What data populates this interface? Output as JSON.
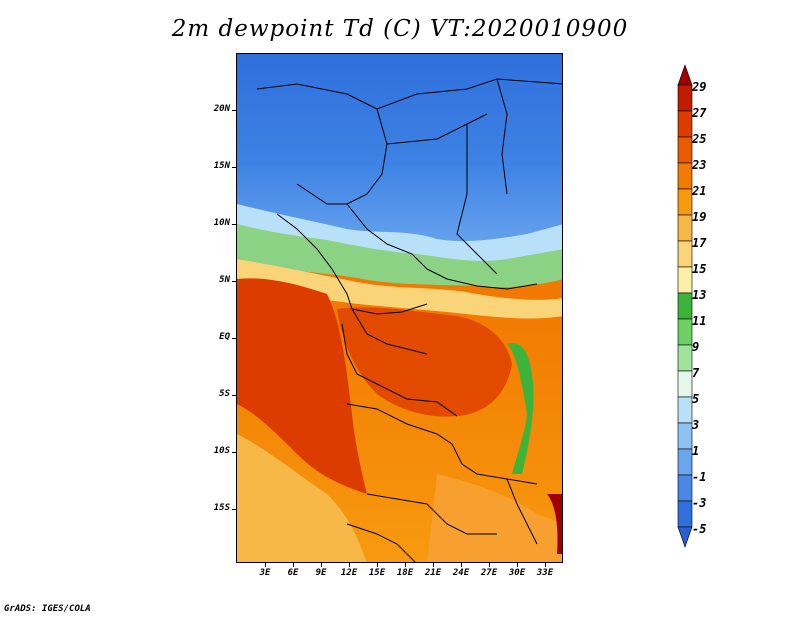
{
  "title": "2m dewpoint Td (C) VT:2020010900",
  "footer": "GrADS: IGES/COLA",
  "map": {
    "lat_labels": [
      "20N",
      "15N",
      "10N",
      "5N",
      "EQ",
      "5S",
      "10S",
      "15S"
    ],
    "lon_labels": [
      "3E",
      "6E",
      "9E",
      "12E",
      "15E",
      "18E",
      "21E",
      "24E",
      "27E",
      "30E",
      "33E"
    ]
  },
  "colorbar": {
    "labels": [
      "29",
      "27",
      "25",
      "23",
      "21",
      "19",
      "17",
      "15",
      "13",
      "11",
      "9",
      "7",
      "5",
      "3",
      "1",
      "-1",
      "-3",
      "-5"
    ],
    "colors": [
      "#a00000",
      "#c21c00",
      "#dc3c00",
      "#ea5a00",
      "#f27a00",
      "#f79a10",
      "#f8b848",
      "#fad478",
      "#fcefa8",
      "#3cb43c",
      "#6cd064",
      "#a0e49c",
      "#e6f8ec",
      "#b8e0f8",
      "#8cc2f4",
      "#6aa6ee",
      "#4a88e6",
      "#3070dc",
      "#2860d4"
    ]
  }
}
